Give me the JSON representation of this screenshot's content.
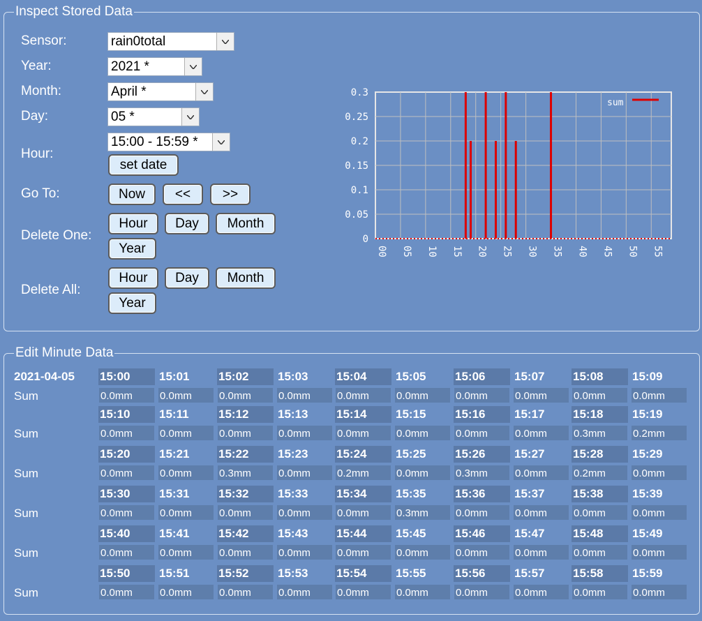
{
  "panel1": {
    "legend": "Inspect Stored Data",
    "labels": {
      "sensor": "Sensor:",
      "year": "Year:",
      "month": "Month:",
      "day": "Day:",
      "hour": "Hour:",
      "goto": "Go To:",
      "delete_one": "Delete One:",
      "delete_all": "Delete All:"
    },
    "selects": {
      "sensor": "rain0total",
      "year": "2021 *",
      "month": "April *",
      "day": "05 *",
      "hour": "15:00 - 15:59 *"
    },
    "set_date": "set date",
    "goto": {
      "now": "Now",
      "prev": "<<",
      "next": ">>"
    },
    "delete_one": {
      "hour": "Hour",
      "day": "Day",
      "month": "Month",
      "year": "Year"
    },
    "delete_all": {
      "hour": "Hour",
      "day": "Day",
      "month": "Month",
      "year": "Year"
    }
  },
  "chart_data": {
    "type": "bar",
    "xlim": [
      0,
      59
    ],
    "ylim": [
      0,
      0.3
    ],
    "xticks": [
      "00",
      "05",
      "10",
      "15",
      "20",
      "25",
      "30",
      "35",
      "40",
      "45",
      "50",
      "55"
    ],
    "yticks": [
      "0",
      "0.05",
      "0.1",
      "0.15",
      "0.2",
      "0.25",
      "0.3"
    ],
    "legend_position": "top-right",
    "grid": true,
    "series": [
      {
        "name": "sum",
        "color": "#dd0000",
        "x": [
          18,
          19,
          22,
          24,
          26,
          28,
          35
        ],
        "values": [
          0.3,
          0.2,
          0.3,
          0.2,
          0.3,
          0.2,
          0.3
        ]
      }
    ]
  },
  "panel2": {
    "legend": "Edit Minute Data",
    "date": "2021-04-05",
    "row_label": "Sum",
    "rows": [
      {
        "times": [
          "15:00",
          "15:01",
          "15:02",
          "15:03",
          "15:04",
          "15:05",
          "15:06",
          "15:07",
          "15:08",
          "15:09"
        ],
        "values": [
          "0.0mm",
          "0.0mm",
          "0.0mm",
          "0.0mm",
          "0.0mm",
          "0.0mm",
          "0.0mm",
          "0.0mm",
          "0.0mm",
          "0.0mm"
        ]
      },
      {
        "times": [
          "15:10",
          "15:11",
          "15:12",
          "15:13",
          "15:14",
          "15:15",
          "15:16",
          "15:17",
          "15:18",
          "15:19"
        ],
        "values": [
          "0.0mm",
          "0.0mm",
          "0.0mm",
          "0.0mm",
          "0.0mm",
          "0.0mm",
          "0.0mm",
          "0.0mm",
          "0.3mm",
          "0.2mm"
        ]
      },
      {
        "times": [
          "15:20",
          "15:21",
          "15:22",
          "15:23",
          "15:24",
          "15:25",
          "15:26",
          "15:27",
          "15:28",
          "15:29"
        ],
        "values": [
          "0.0mm",
          "0.0mm",
          "0.3mm",
          "0.0mm",
          "0.2mm",
          "0.0mm",
          "0.3mm",
          "0.0mm",
          "0.2mm",
          "0.0mm"
        ]
      },
      {
        "times": [
          "15:30",
          "15:31",
          "15:32",
          "15:33",
          "15:34",
          "15:35",
          "15:36",
          "15:37",
          "15:38",
          "15:39"
        ],
        "values": [
          "0.0mm",
          "0.0mm",
          "0.0mm",
          "0.0mm",
          "0.0mm",
          "0.3mm",
          "0.0mm",
          "0.0mm",
          "0.0mm",
          "0.0mm"
        ]
      },
      {
        "times": [
          "15:40",
          "15:41",
          "15:42",
          "15:43",
          "15:44",
          "15:45",
          "15:46",
          "15:47",
          "15:48",
          "15:49"
        ],
        "values": [
          "0.0mm",
          "0.0mm",
          "0.0mm",
          "0.0mm",
          "0.0mm",
          "0.0mm",
          "0.0mm",
          "0.0mm",
          "0.0mm",
          "0.0mm"
        ]
      },
      {
        "times": [
          "15:50",
          "15:51",
          "15:52",
          "15:53",
          "15:54",
          "15:55",
          "15:56",
          "15:57",
          "15:58",
          "15:59"
        ],
        "values": [
          "0.0mm",
          "0.0mm",
          "0.0mm",
          "0.0mm",
          "0.0mm",
          "0.0mm",
          "0.0mm",
          "0.0mm",
          "0.0mm",
          "0.0mm"
        ]
      }
    ]
  }
}
